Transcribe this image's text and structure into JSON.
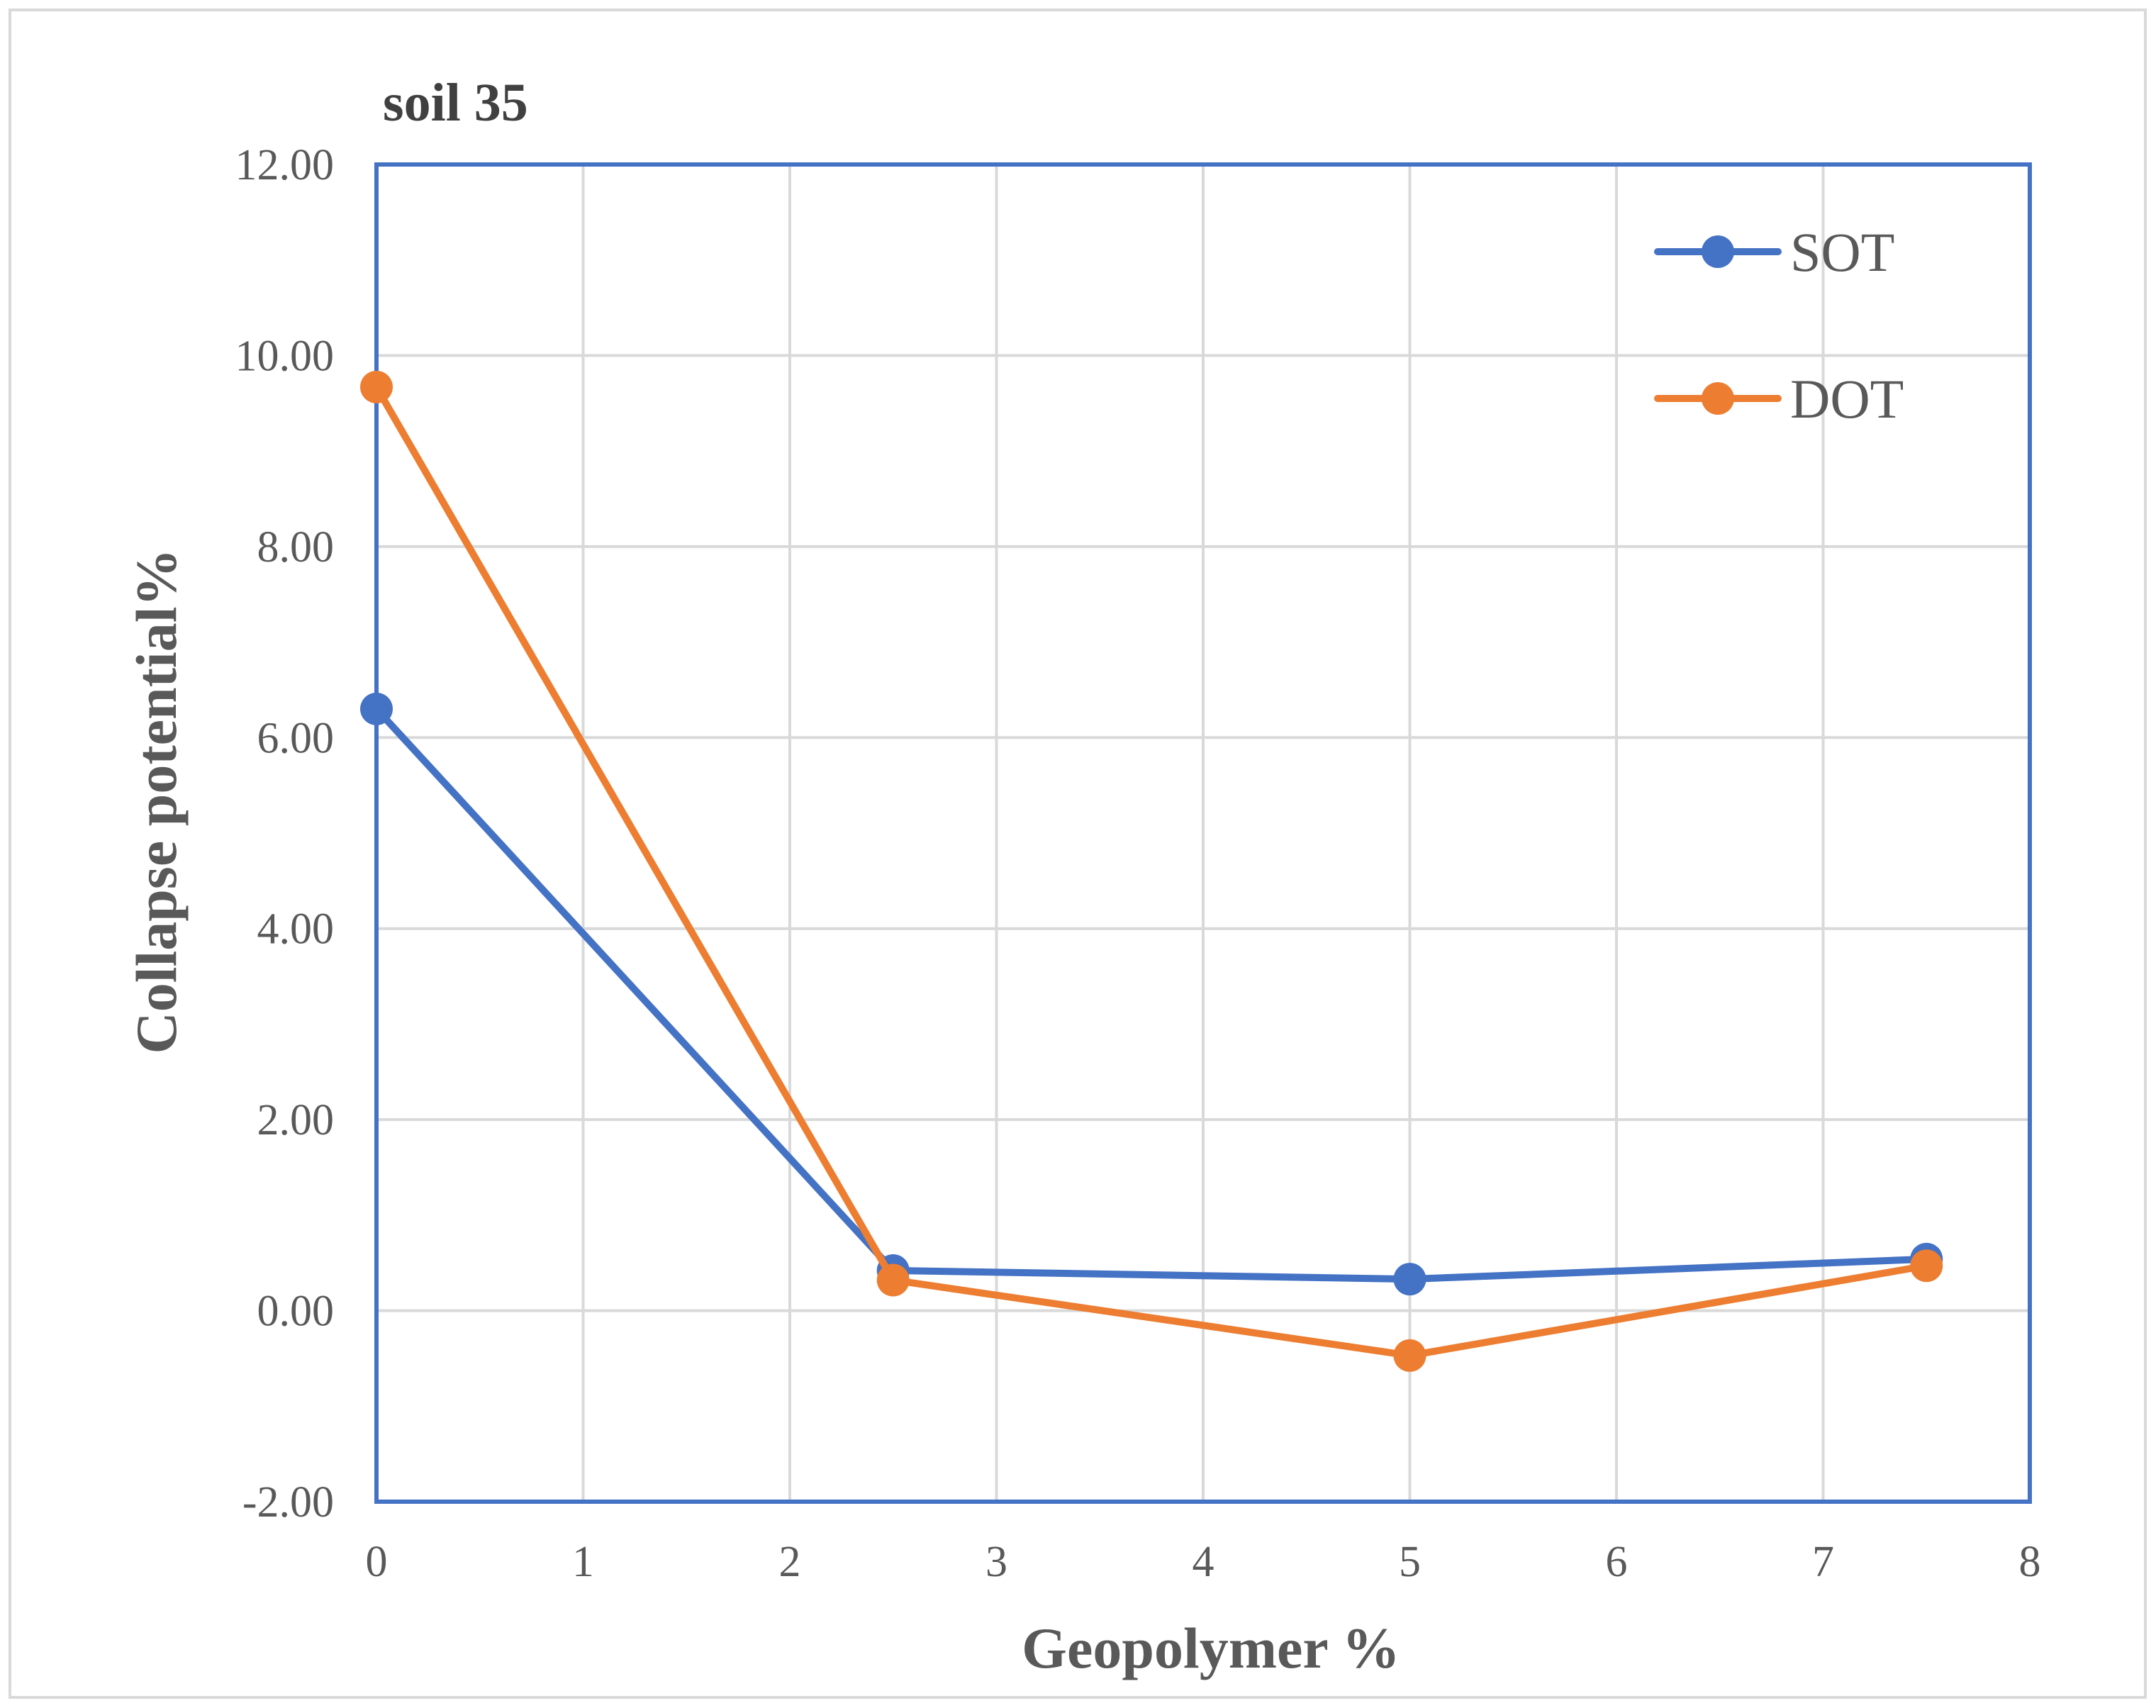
{
  "chart_data": {
    "type": "line",
    "title": "soil 35",
    "xlabel": "Geopolymer %",
    "ylabel": "Collapse potential%",
    "xlim": [
      0,
      8
    ],
    "ylim": [
      -2,
      12
    ],
    "x_ticks": [
      0,
      1,
      2,
      3,
      4,
      5,
      6,
      7,
      8
    ],
    "x_tick_labels": [
      "0",
      "1",
      "2",
      "3",
      "4",
      "5",
      "6",
      "7",
      "8"
    ],
    "y_ticks": [
      -2,
      0,
      2,
      4,
      6,
      8,
      10,
      12
    ],
    "y_tick_labels": [
      "-2.00",
      "0.00",
      "2.00",
      "4.00",
      "6.00",
      "8.00",
      "10.00",
      "12.00"
    ],
    "grid": true,
    "legend_position": "top-right",
    "series": [
      {
        "name": "SOT",
        "color": "#4472c4",
        "x": [
          0,
          2.5,
          5,
          7.5
        ],
        "values": [
          6.3,
          0.42,
          0.33,
          0.54
        ]
      },
      {
        "name": "DOT",
        "color": "#ed7d31",
        "x": [
          0,
          2.5,
          5,
          7.5
        ],
        "values": [
          9.67,
          0.32,
          -0.47,
          0.47
        ]
      }
    ]
  },
  "colors": {
    "grid": "#d9d9d9",
    "plot_border": "#4472c4",
    "outer_border": "#d9d9d9"
  }
}
